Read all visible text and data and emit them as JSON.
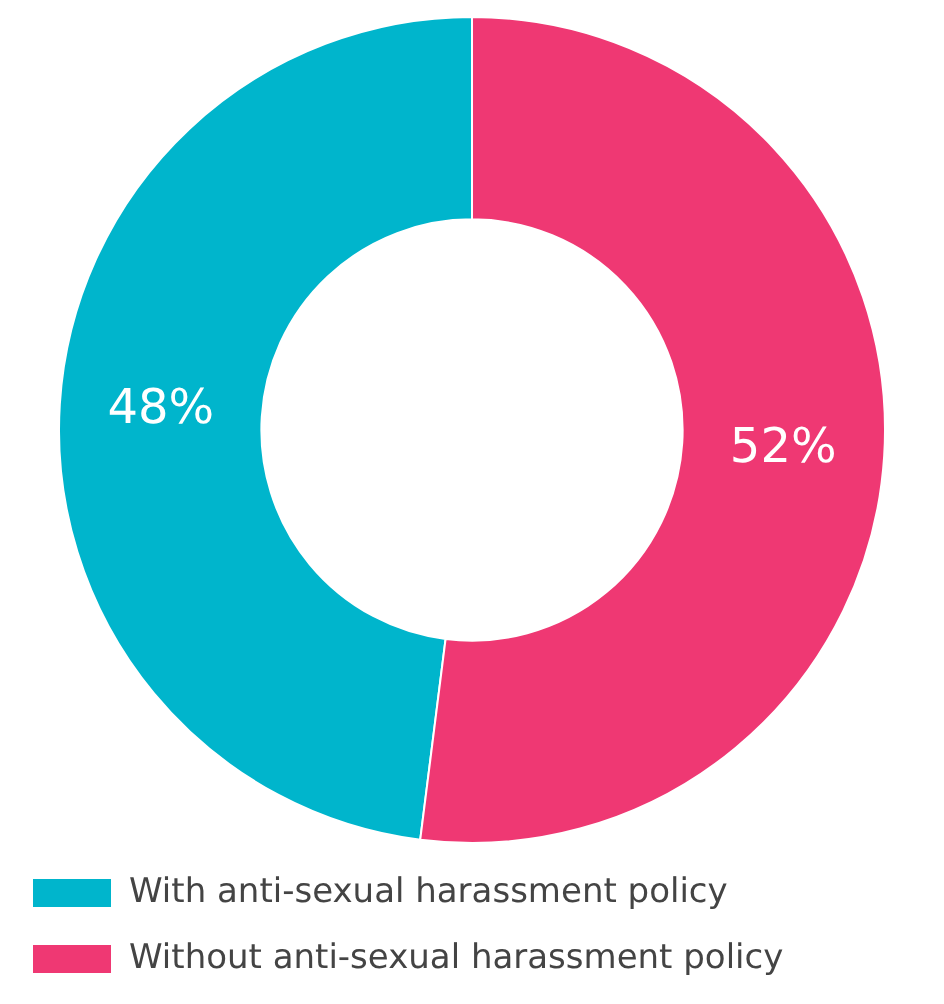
{
  "chart_data": {
    "type": "donut",
    "categories": [
      "With anti-sexual harassment policy",
      "Without anti-sexual harassment policy"
    ],
    "values": [
      48,
      52
    ],
    "colors": [
      "#00b5cc",
      "#ef3873"
    ],
    "value_labels": [
      "48%",
      "52%"
    ],
    "legend": "bottom"
  }
}
